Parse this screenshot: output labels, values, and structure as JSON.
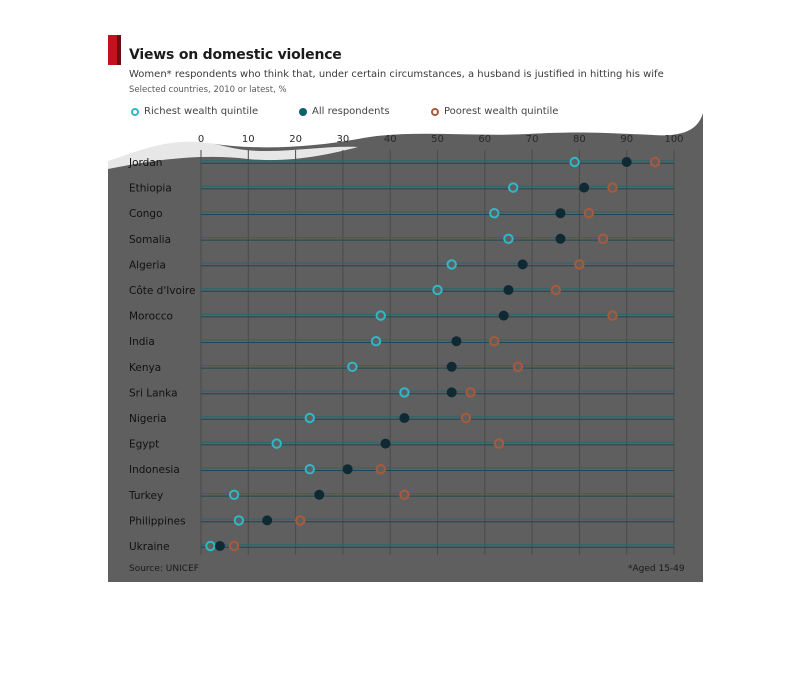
{
  "chart_data": {
    "type": "dot",
    "title": "Views on domestic violence",
    "subtitle": "Women* respondents who think that, under certain circumstances, a husband is justified in hitting his wife",
    "note": "Selected countries, 2010 or latest, %",
    "source": "Source: UNICEF",
    "footnote": "*Aged 15-49",
    "x_ticks": [
      0,
      10,
      20,
      30,
      40,
      50,
      60,
      70,
      80,
      90,
      100
    ],
    "xlim": [
      0,
      100
    ],
    "grid": true,
    "categories": [
      "Jordan",
      "Ethiopia",
      "Congo",
      "Somalia",
      "Algeria",
      "Côte d'Ivoire",
      "Morocco",
      "India",
      "Kenya",
      "Sri Lanka",
      "Nigeria",
      "Egypt",
      "Indonesia",
      "Turkey",
      "Philippines",
      "Ukraine"
    ],
    "series": [
      {
        "name": "Richest wealth quintile",
        "marker": "open",
        "color": "#2fb8c8",
        "values": [
          79,
          66,
          62,
          65,
          53,
          50,
          38,
          37,
          32,
          43,
          23,
          16,
          23,
          7,
          8,
          2
        ]
      },
      {
        "name": "All respondents",
        "marker": "filled",
        "color": "#0f2a33",
        "values": [
          90,
          81,
          76,
          76,
          68,
          65,
          64,
          54,
          53,
          53,
          43,
          39,
          31,
          25,
          14,
          4
        ]
      },
      {
        "name": "Poorest wealth quintile",
        "marker": "open",
        "color": "#a85a3c",
        "values": [
          96,
          87,
          82,
          85,
          80,
          75,
          87,
          62,
          67,
          57,
          56,
          63,
          38,
          43,
          21,
          7
        ]
      }
    ]
  },
  "colors": {
    "panel": "#5f5f5f",
    "header": "#ffffff",
    "accent": "#c0141c",
    "gridline": "#4a4a4a",
    "row_line": "#1f4752"
  }
}
